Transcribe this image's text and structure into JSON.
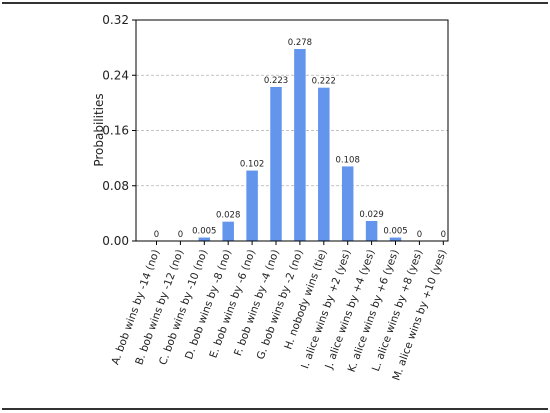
{
  "chart_data": {
    "type": "bar",
    "title": "",
    "xlabel": "",
    "ylabel": "Probabilities",
    "ylim": [
      0,
      0.32
    ],
    "yticks": [
      "0.00",
      "0.08",
      "0.16",
      "0.24",
      "0.32"
    ],
    "grid": "horizontal-dashed",
    "bar_color": "#6495ed",
    "categories": [
      "A. bob wins by -14 (no)",
      "B. bob wins by -12 (no)",
      "C. bob wins by -10 (no)",
      "D. bob wins by -8 (no)",
      "E. bob wins by -6 (no)",
      "F. bob wins by -4 (no)",
      "G. bob wins by -2 (no)",
      "H. nobody wins (tie)",
      "I. alice wins by +2 (yes)",
      "J. alice wins by +4 (yes)",
      "K. alice wins by +6 (yes)",
      "L. alice wins by +8 (yes)",
      "M. alice wins by +10 (yes)"
    ],
    "values": [
      0,
      0,
      0.005,
      0.028,
      0.102,
      0.223,
      0.278,
      0.222,
      0.108,
      0.029,
      0.005,
      0,
      0
    ],
    "value_labels": [
      "0",
      "0",
      "0.005",
      "0.028",
      "0.102",
      "0.223",
      "0.278",
      "0.222",
      "0.108",
      "0.029",
      "0.005",
      "0",
      "0"
    ]
  }
}
